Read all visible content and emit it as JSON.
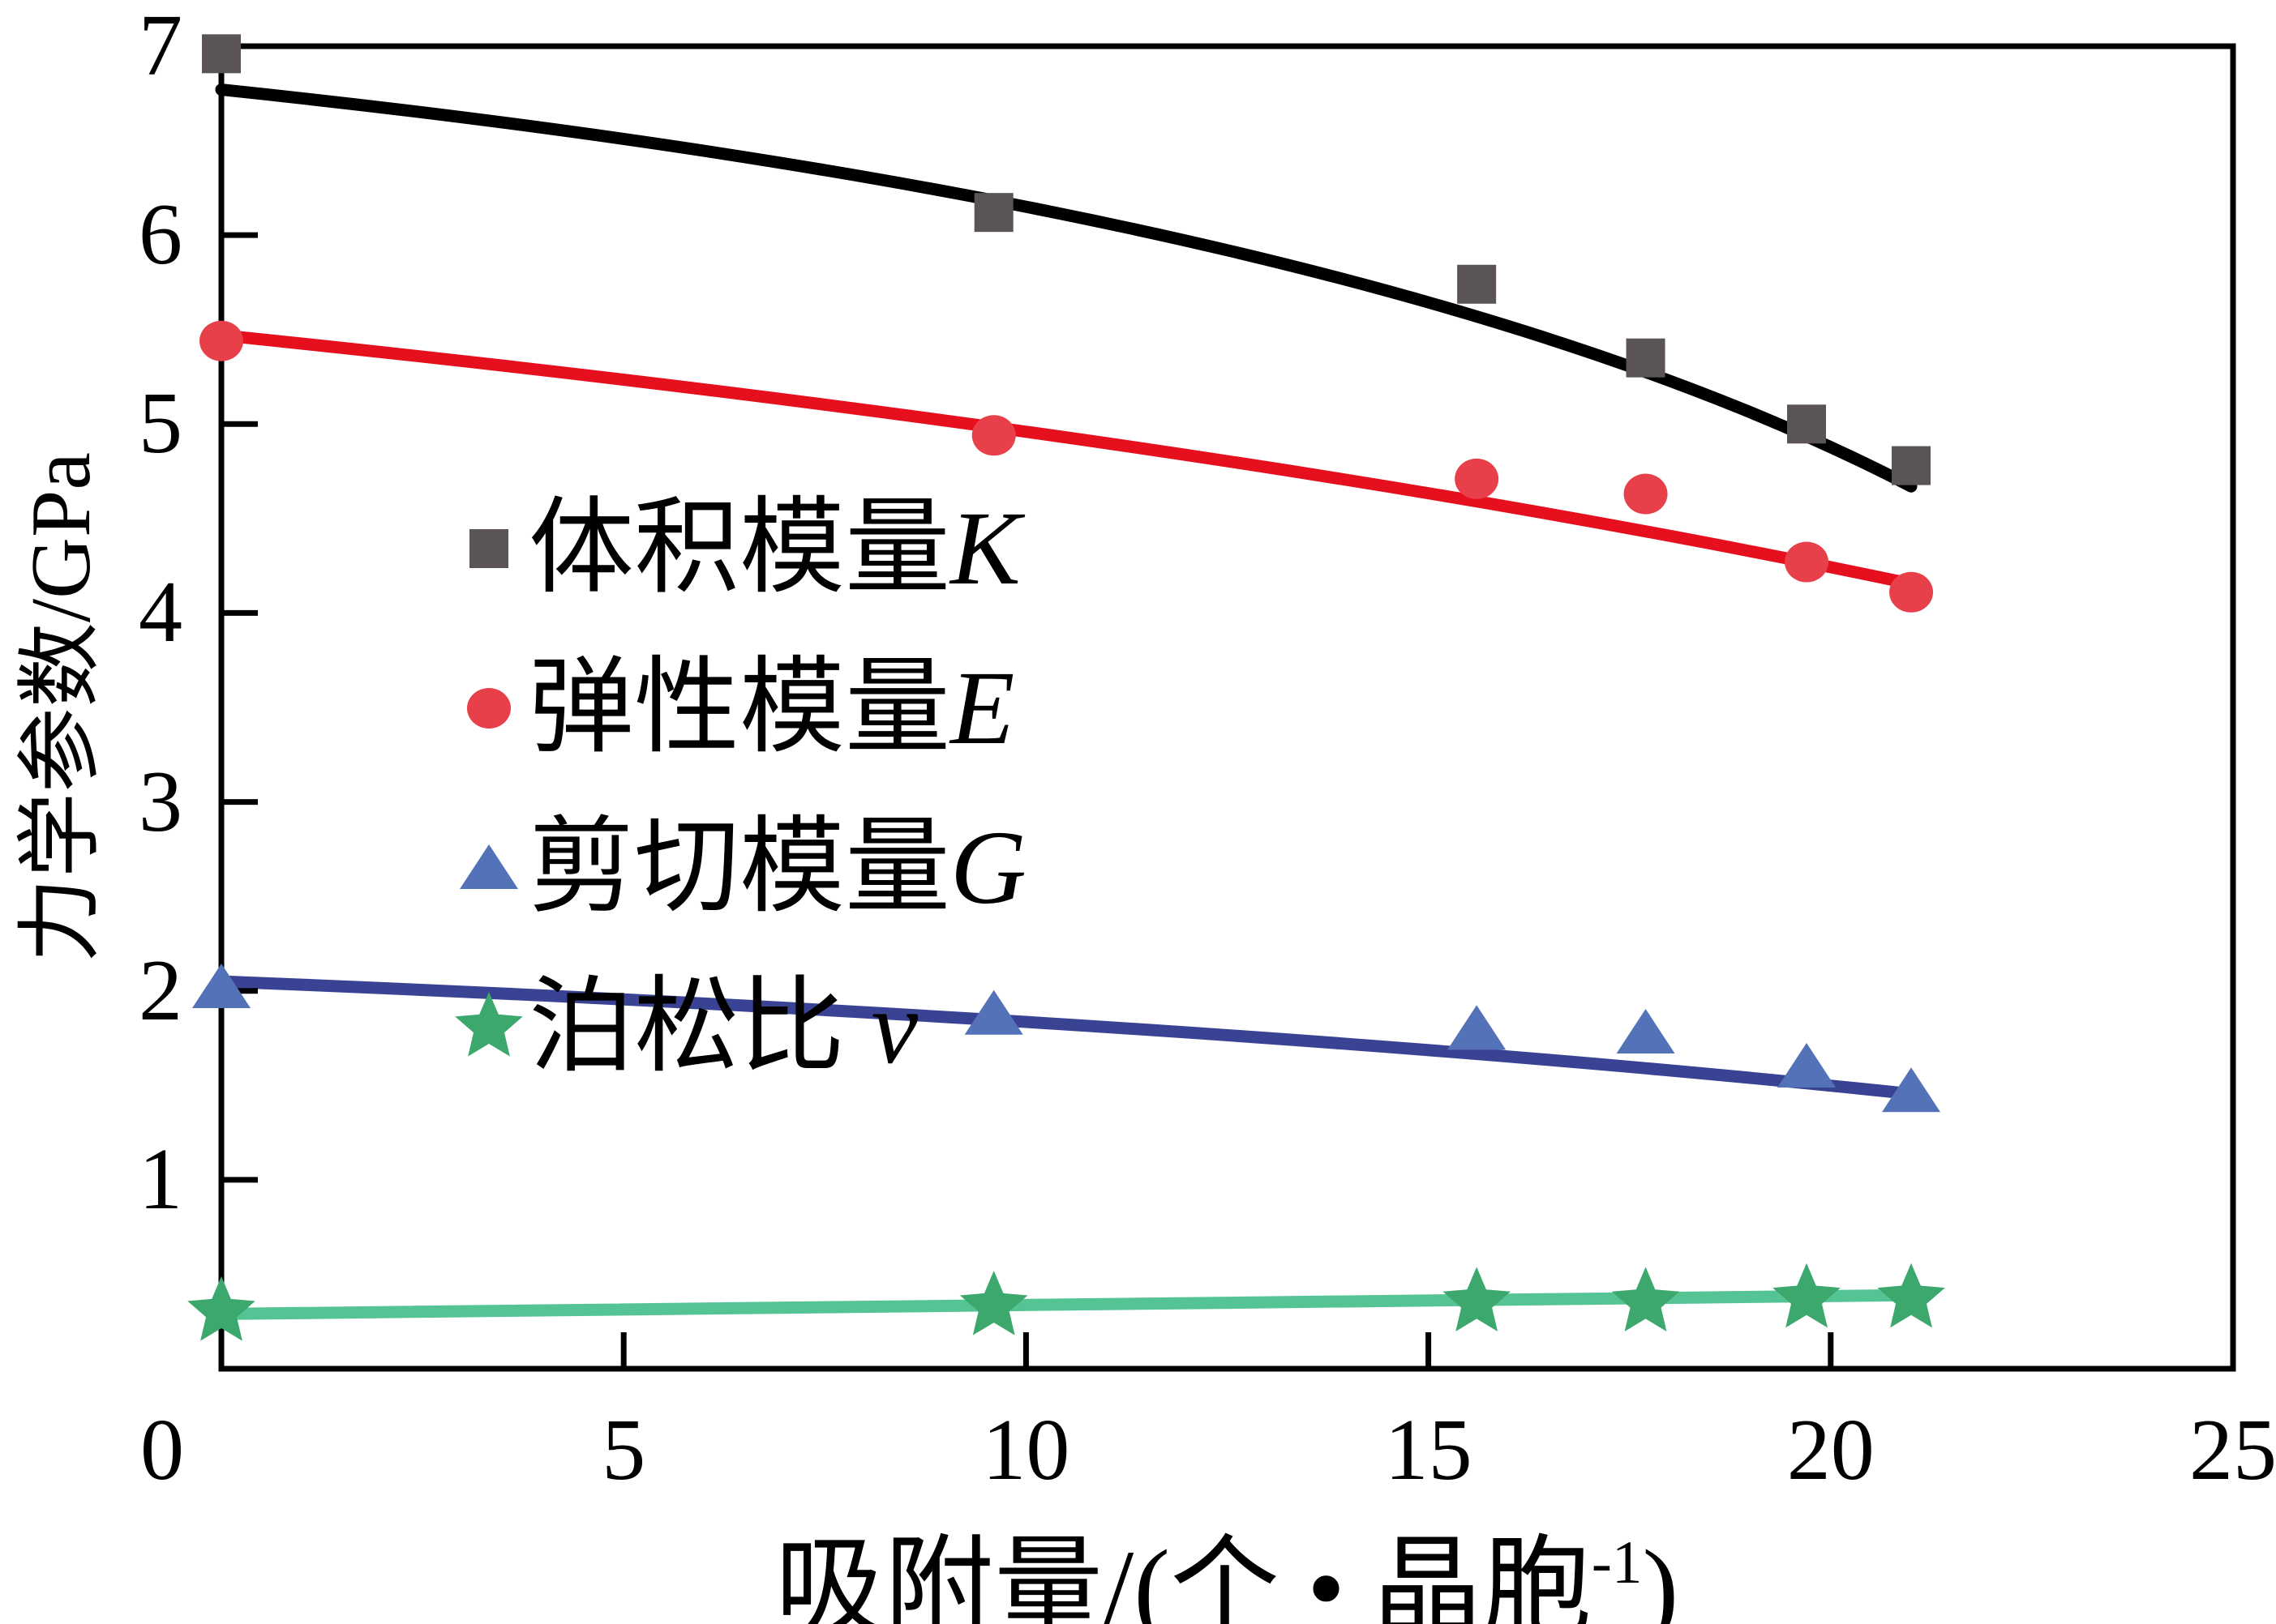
{
  "figure": {
    "ylabel": "力学参数/GPa",
    "xlabel_prefix": "吸附量/(个 • 晶胞",
    "xlabel_sup": "-1",
    "xlabel_suffix": ")"
  },
  "chart_data": {
    "type": "scatter",
    "title": "",
    "xlabel": "吸附量/(个•晶胞⁻¹)",
    "ylabel": "力学参数/GPa",
    "xlim": [
      0,
      25
    ],
    "ylim": [
      0,
      7
    ],
    "grid": false,
    "legend_position": "upper-left-inside",
    "x_ticks": [
      0,
      5,
      10,
      15,
      20,
      25
    ],
    "y_ticks": [
      1,
      2,
      3,
      4,
      5,
      6,
      7
    ],
    "x": [
      0,
      9.6,
      15.6,
      17.7,
      19.7,
      21.0
    ],
    "series": [
      {
        "key": "K",
        "name": "体积模量K",
        "label": "体积模量",
        "symbol": "K",
        "marker": "square",
        "marker_color": "#5A5358",
        "line_color": "#000000",
        "values": [
          6.96,
          6.12,
          5.74,
          5.35,
          5.0,
          4.78
        ],
        "fit": {
          "type": "quad",
          "p": [
            [
              0,
              6.77
            ],
            [
              14.4,
              6.13
            ],
            [
              21.0,
              4.67
            ]
          ]
        }
      },
      {
        "key": "E",
        "name": "弹性模量E",
        "label": "弹性模量",
        "symbol": "E",
        "marker": "circle",
        "marker_color": "#E8404A",
        "line_color": "#E60F1E",
        "values": [
          5.44,
          4.94,
          4.71,
          4.63,
          4.27,
          4.11
        ],
        "fit": {
          "type": "quad",
          "p": [
            [
              0,
              5.47
            ],
            [
              12.4,
              4.93
            ],
            [
              21.05,
              4.15
            ]
          ]
        }
      },
      {
        "key": "G",
        "name": "剪切模量G",
        "label": "剪切模量",
        "symbol": "G",
        "marker": "triangle",
        "marker_color": "#5472B8",
        "line_color": "#3A4294",
        "values": [
          2.02,
          1.88,
          1.8,
          1.78,
          1.6,
          1.47
        ],
        "fit": {
          "type": "quad",
          "p": [
            [
              0,
              2.05
            ],
            [
              12.4,
              1.84
            ],
            [
              21.1,
              1.45
            ]
          ]
        }
      },
      {
        "key": "v",
        "name": "泊松比v",
        "label": "泊松比 ",
        "symbol": "v",
        "marker": "star",
        "marker_color": "#3DA86E",
        "line_color": "#54C494",
        "values": [
          0.3,
          0.33,
          0.35,
          0.35,
          0.37,
          0.37
        ],
        "fit": {
          "type": "line",
          "p": [
            [
              0,
              0.29
            ],
            [
              21.1,
              0.39
            ]
          ]
        }
      }
    ]
  }
}
